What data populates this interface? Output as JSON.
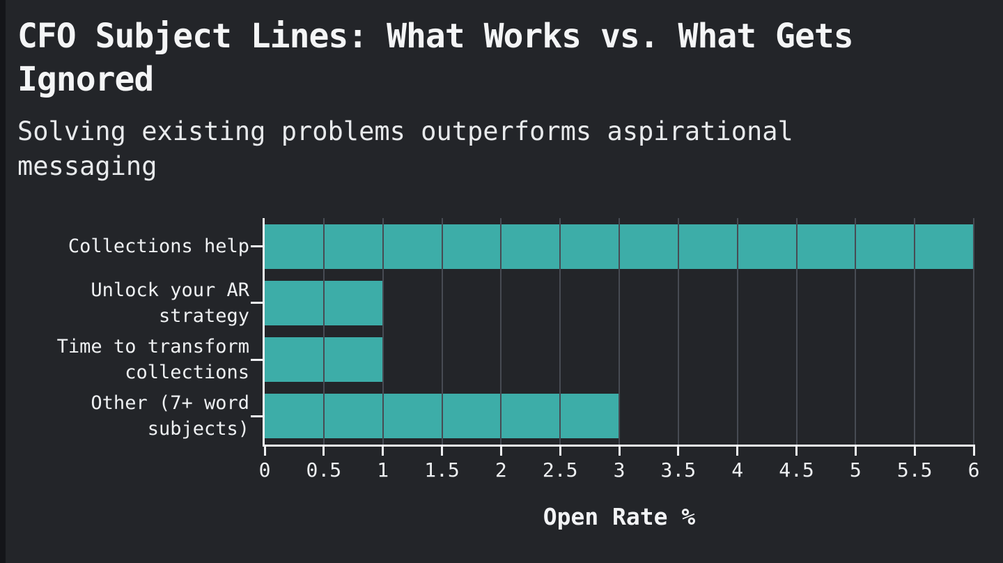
{
  "page": {
    "background_color": "#232529",
    "edge_strip_color": "#141519"
  },
  "header": {
    "title": "CFO Subject Lines: What Works vs. What Gets\nIgnored",
    "subtitle": "Solving existing problems outperforms aspirational\nmessaging"
  },
  "chart_data": {
    "type": "bar",
    "orientation": "horizontal",
    "title": "CFO Subject Lines: What Works vs. What Gets Ignored",
    "subtitle": "Solving existing problems outperforms aspirational messaging",
    "categories": [
      "Collections help",
      "Unlock your AR\nstrategy",
      "Time to transform\ncollections",
      "Other (7+ word\nsubjects)"
    ],
    "values": [
      6,
      1,
      1,
      3
    ],
    "xlabel": "Open Rate %",
    "ylabel": "",
    "xlim": [
      0,
      6
    ],
    "xticks": [
      0,
      0.5,
      1,
      1.5,
      2,
      2.5,
      3,
      3.5,
      4,
      4.5,
      5,
      5.5,
      6
    ],
    "xtick_labels": [
      "0",
      "0.5",
      "1",
      "1.5",
      "2",
      "2.5",
      "3",
      "3.5",
      "4",
      "4.5",
      "5",
      "5.5",
      "6"
    ],
    "grid": true,
    "legend": false,
    "colors": {
      "bar": "#3dada8",
      "gridline": "#474b53",
      "axis": "#f0f1f3",
      "tick_text": "#eef0f2",
      "title_text": "#f4f5f6",
      "subtitle_text": "#e8eaec"
    }
  }
}
